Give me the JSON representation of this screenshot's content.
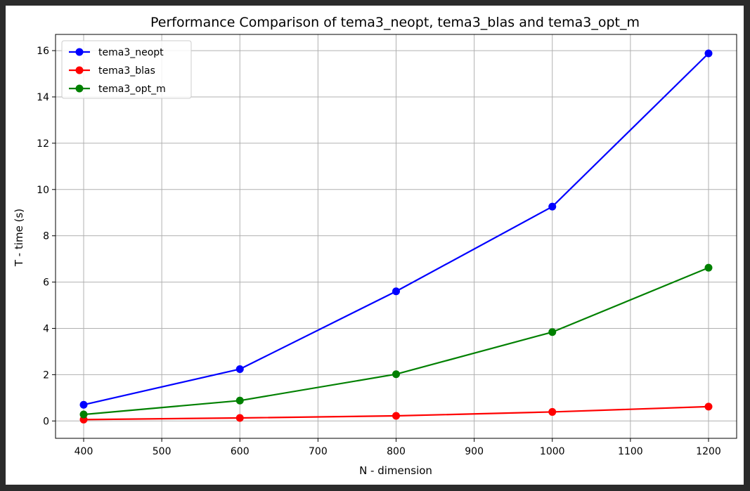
{
  "chart_data": {
    "type": "line",
    "title": "Performance Comparison of tema3_neopt, tema3_blas and tema3_opt_m",
    "xlabel": "N - dimension",
    "ylabel": "T - time (s)",
    "xlim": [
      364,
      1236
    ],
    "ylim": [
      -0.75,
      16.7
    ],
    "xticks": [
      400,
      500,
      600,
      700,
      800,
      900,
      1000,
      1100,
      1200
    ],
    "yticks": [
      0,
      2,
      4,
      6,
      8,
      10,
      12,
      14,
      16
    ],
    "grid": true,
    "legend_position": "top-left",
    "x": [
      400,
      600,
      800,
      1000,
      1200
    ],
    "series": [
      {
        "name": "tema3_neopt",
        "color": "#0000ff",
        "values": [
          0.7,
          2.24,
          5.6,
          9.26,
          15.88
        ]
      },
      {
        "name": "tema3_blas",
        "color": "#ff0000",
        "values": [
          0.06,
          0.13,
          0.22,
          0.39,
          0.62
        ]
      },
      {
        "name": "tema3_opt_m",
        "color": "#008000",
        "values": [
          0.28,
          0.88,
          2.02,
          3.84,
          6.62
        ]
      }
    ]
  }
}
